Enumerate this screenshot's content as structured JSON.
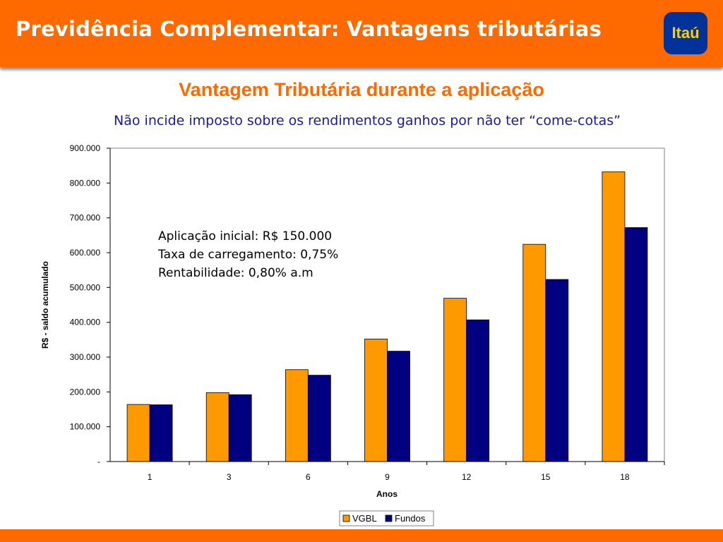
{
  "header": {
    "title": "Previdência Complementar: Vantagens tributárias",
    "logo_text": "Itaú"
  },
  "subtitle": "Vantagem Tributária durante a aplicação",
  "note": "Não incide imposto sobre os rendimentos  ganhos por não ter “come-cotas”",
  "colors": {
    "orange": "#ff6a00",
    "vgbl": "#ff9900",
    "fundos": "#000080",
    "blue_text": "#1a1a99"
  },
  "chart_data": {
    "type": "bar",
    "categories": [
      "1",
      "3",
      "6",
      "9",
      "12",
      "15",
      "18"
    ],
    "series": [
      {
        "name": "VGBL",
        "values": [
          164000,
          198000,
          264000,
          352000,
          469000,
          624000,
          832000
        ]
      },
      {
        "name": "Fundos",
        "values": [
          163000,
          192000,
          248000,
          317000,
          407000,
          523000,
          672000
        ]
      }
    ],
    "xlabel": "Anos",
    "ylabel": "R$ - saldo acumulado",
    "ylim": [
      0,
      900000
    ],
    "yticks": [
      {
        "value": 0,
        "label": "-"
      },
      {
        "value": 100000,
        "label": "100.000"
      },
      {
        "value": 200000,
        "label": "200.000"
      },
      {
        "value": 300000,
        "label": "300.000"
      },
      {
        "value": 400000,
        "label": "400.000"
      },
      {
        "value": 500000,
        "label": "500.000"
      },
      {
        "value": 600000,
        "label": "600.000"
      },
      {
        "value": 700000,
        "label": "700.000"
      },
      {
        "value": 800000,
        "label": "800.000"
      },
      {
        "value": 900000,
        "label": "900.000"
      }
    ],
    "annotations": [
      "Aplicação inicial: R$ 150.000",
      "Taxa de carregamento: 0,75%",
      "Rentabilidade: 0,80% a.m"
    ],
    "legend_position": "bottom",
    "grid": false
  }
}
